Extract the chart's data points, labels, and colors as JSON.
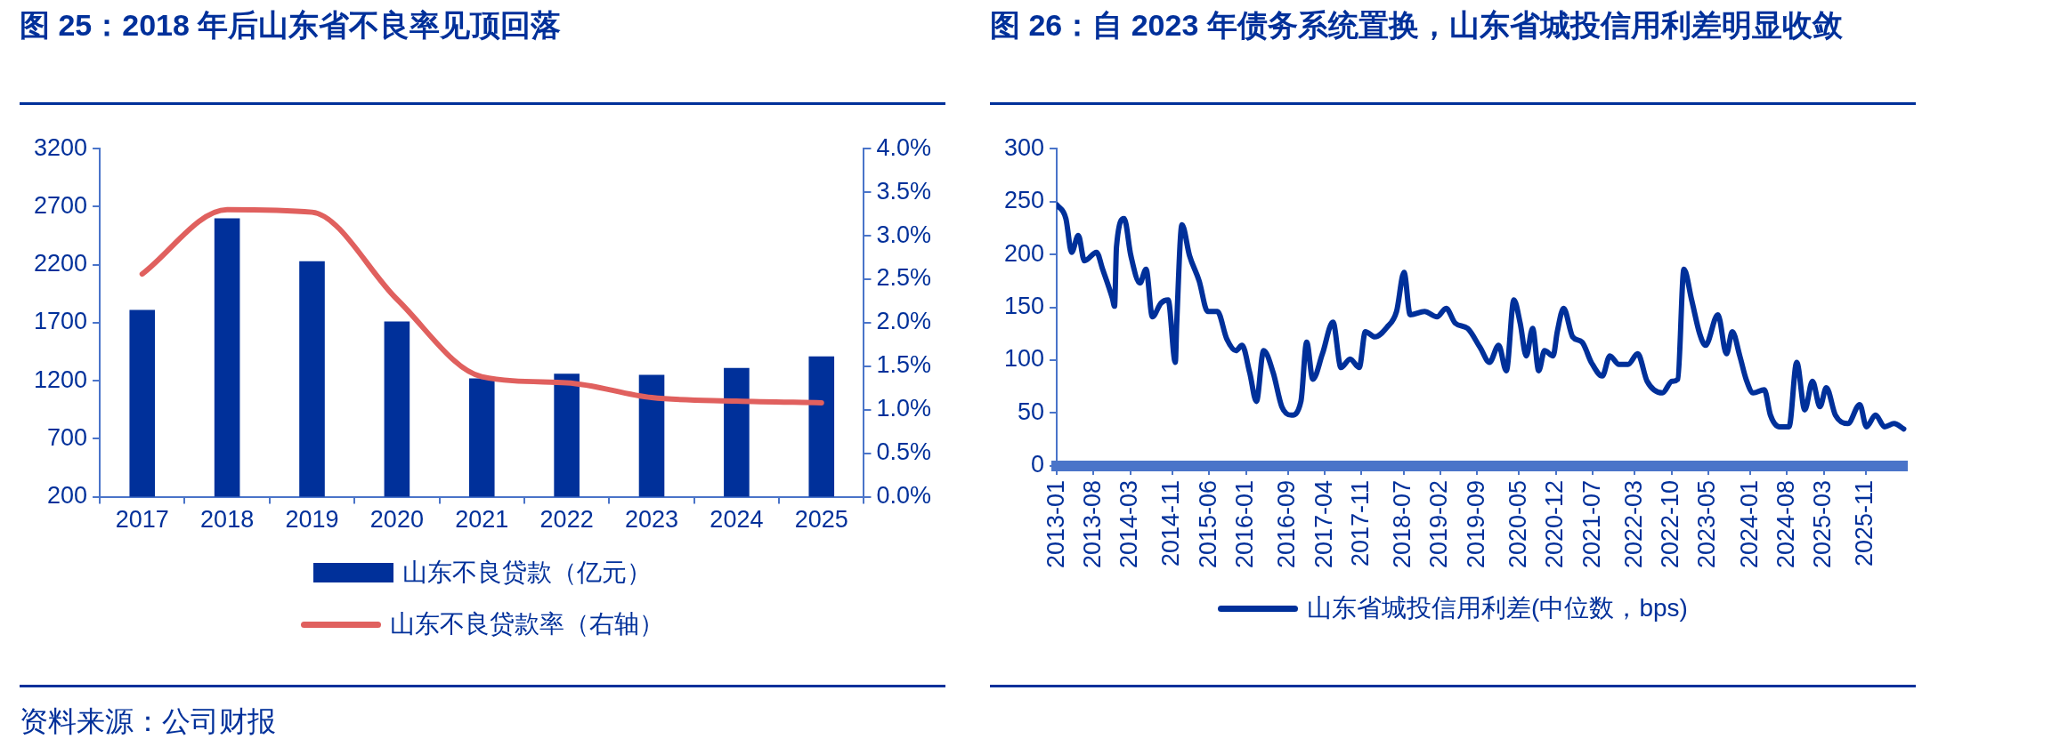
{
  "chart_data": [
    {
      "type": "bar",
      "title": "图 25：2018 年后山东省不良率见顶回落",
      "categories": [
        "2017",
        "2018",
        "2019",
        "2020",
        "2021",
        "2022",
        "2023",
        "2024",
        "2025"
      ],
      "series": [
        {
          "name": "山东不良贷款（亿元）",
          "type": "bar",
          "color": "#00309a",
          "values": [
            1810,
            2600,
            2230,
            1710,
            1220,
            1260,
            1250,
            1310,
            1410
          ]
        },
        {
          "name": "山东不良贷款率（右轴）",
          "type": "line",
          "axis": "y2",
          "color": "#e0605e",
          "values": [
            2.56,
            3.3,
            3.27,
            2.27,
            1.38,
            1.31,
            1.14,
            1.1,
            1.08
          ]
        }
      ],
      "ylim": [
        200,
        3200
      ],
      "yticks": [
        200,
        700,
        1200,
        1700,
        2200,
        2700,
        3200
      ],
      "y2lim": [
        0,
        4
      ],
      "y2ticks": [
        {
          "value": 0,
          "label": "0.0%"
        },
        {
          "value": 0.5,
          "label": "0.5%"
        },
        {
          "value": 1,
          "label": "1.0%"
        },
        {
          "value": 1.5,
          "label": "1.5%"
        },
        {
          "value": 2,
          "label": "2.0%"
        },
        {
          "value": 2.5,
          "label": "2.5%"
        },
        {
          "value": 3,
          "label": "3.0%"
        },
        {
          "value": 3.5,
          "label": "3.5%"
        },
        {
          "value": 4,
          "label": "4.0%"
        }
      ],
      "legend": "bottom",
      "marker": "none",
      "annotations": [
        "资料来源：公司财报"
      ]
    },
    {
      "type": "line",
      "title": "图 26：自 2023 年债务系统置换，山东省城投信用利差明显收敛",
      "x": [
        "2013-01-01",
        "2013-02-23",
        "2013-03-26",
        "2013-05-04",
        "2013-06-09",
        "2013-08-18",
        "2013-09-23",
        "2013-11-18",
        "2013-12-01",
        "2013-12-12",
        "2014-01-26",
        "2014-03-04",
        "2014-04-26",
        "2014-06-01",
        "2014-07-07",
        "2014-08-26",
        "2014-10-07",
        "2014-11-18",
        "2014-11-26",
        "2014-12-26",
        "2015-02-09",
        "2015-04-04",
        "2015-05-23",
        "2015-07-18",
        "2015-09-12",
        "2015-11-04",
        "2015-12-09",
        "2016-01-23",
        "2016-03-01",
        "2016-04-12",
        "2016-06-07",
        "2016-07-26",
        "2016-09-21",
        "2016-11-15",
        "2016-12-18",
        "2017-01-23",
        "2017-03-18",
        "2017-05-18",
        "2017-07-04",
        "2017-08-26",
        "2017-10-18",
        "2017-11-23",
        "2018-01-18",
        "2018-03-26",
        "2018-05-21",
        "2018-07-04",
        "2018-08-09",
        "2018-11-01",
        "2019-01-12",
        "2019-03-04",
        "2019-04-26",
        "2019-07-07",
        "2019-09-18",
        "2019-11-12",
        "2020-01-04",
        "2020-02-18",
        "2020-04-01",
        "2020-05-07",
        "2020-06-12",
        "2020-07-18",
        "2020-08-23",
        "2020-09-26",
        "2020-11-15",
        "2020-12-09",
        "2021-01-15",
        "2021-03-07",
        "2021-05-01",
        "2021-06-23",
        "2021-08-26",
        "2021-10-09",
        "2021-12-01",
        "2022-01-23",
        "2022-03-18",
        "2022-05-12",
        "2022-08-09",
        "2022-10-04",
        "2022-11-07",
        "2022-12-12",
        "2023-01-26",
        "2023-03-12",
        "2023-04-15",
        "2023-06-26",
        "2023-08-15",
        "2023-09-18",
        "2023-11-01",
        "2023-12-07",
        "2024-01-18",
        "2024-03-21",
        "2024-04-26",
        "2024-06-18",
        "2024-08-12",
        "2024-09-26",
        "2024-11-12",
        "2024-12-26",
        "2025-02-09",
        "2025-03-15",
        "2025-05-07",
        "2025-07-18",
        "2025-09-26",
        "2025-11-04",
        "2025-12-26",
        "2026-02-18",
        "2026-04-12",
        "2026-06-07"
      ],
      "series": [
        {
          "name": "山东省城投信用利差(中位数，bps)",
          "color": "#00309a",
          "values": [
            247,
            234,
            202,
            218,
            194,
            202,
            186,
            159,
            151,
            207,
            234,
            199,
            173,
            186,
            141,
            154,
            157,
            98,
            135,
            228,
            199,
            175,
            146,
            146,
            120,
            109,
            114,
            88,
            61,
            109,
            88,
            56,
            48,
            61,
            117,
            82,
            106,
            136,
            93,
            101,
            93,
            127,
            122,
            131,
            146,
            183,
            143,
            146,
            141,
            149,
            135,
            130,
            112,
            98,
            114,
            90,
            157,
            135,
            104,
            130,
            90,
            109,
            104,
            127,
            149,
            122,
            117,
            98,
            85,
            104,
            96,
            96,
            106,
            80,
            69,
            80,
            82,
            186,
            157,
            125,
            114,
            143,
            106,
            127,
            104,
            82,
            69,
            72,
            48,
            37,
            37,
            98,
            53,
            80,
            56,
            74,
            48,
            40,
            58,
            37,
            48,
            37,
            40,
            35
          ]
        }
      ],
      "xlim": [
        "2013-01-01",
        "2026-06-25"
      ],
      "xticks": [
        "2013-01",
        "2013-08",
        "2014-03",
        "2014-11",
        "2015-06",
        "2016-01",
        "2016-09",
        "2017-04",
        "2017-11",
        "2018-07",
        "2019-02",
        "2019-09",
        "2020-05",
        "2020-12",
        "2021-07",
        "2022-03",
        "2022-10",
        "2023-05",
        "2024-01",
        "2024-08",
        "2025-03",
        "2025-11"
      ],
      "ylim": [
        0,
        300
      ],
      "yticks": [
        0,
        50,
        100,
        150,
        200,
        250,
        300
      ],
      "legend": "bottom",
      "marker": "none"
    }
  ]
}
